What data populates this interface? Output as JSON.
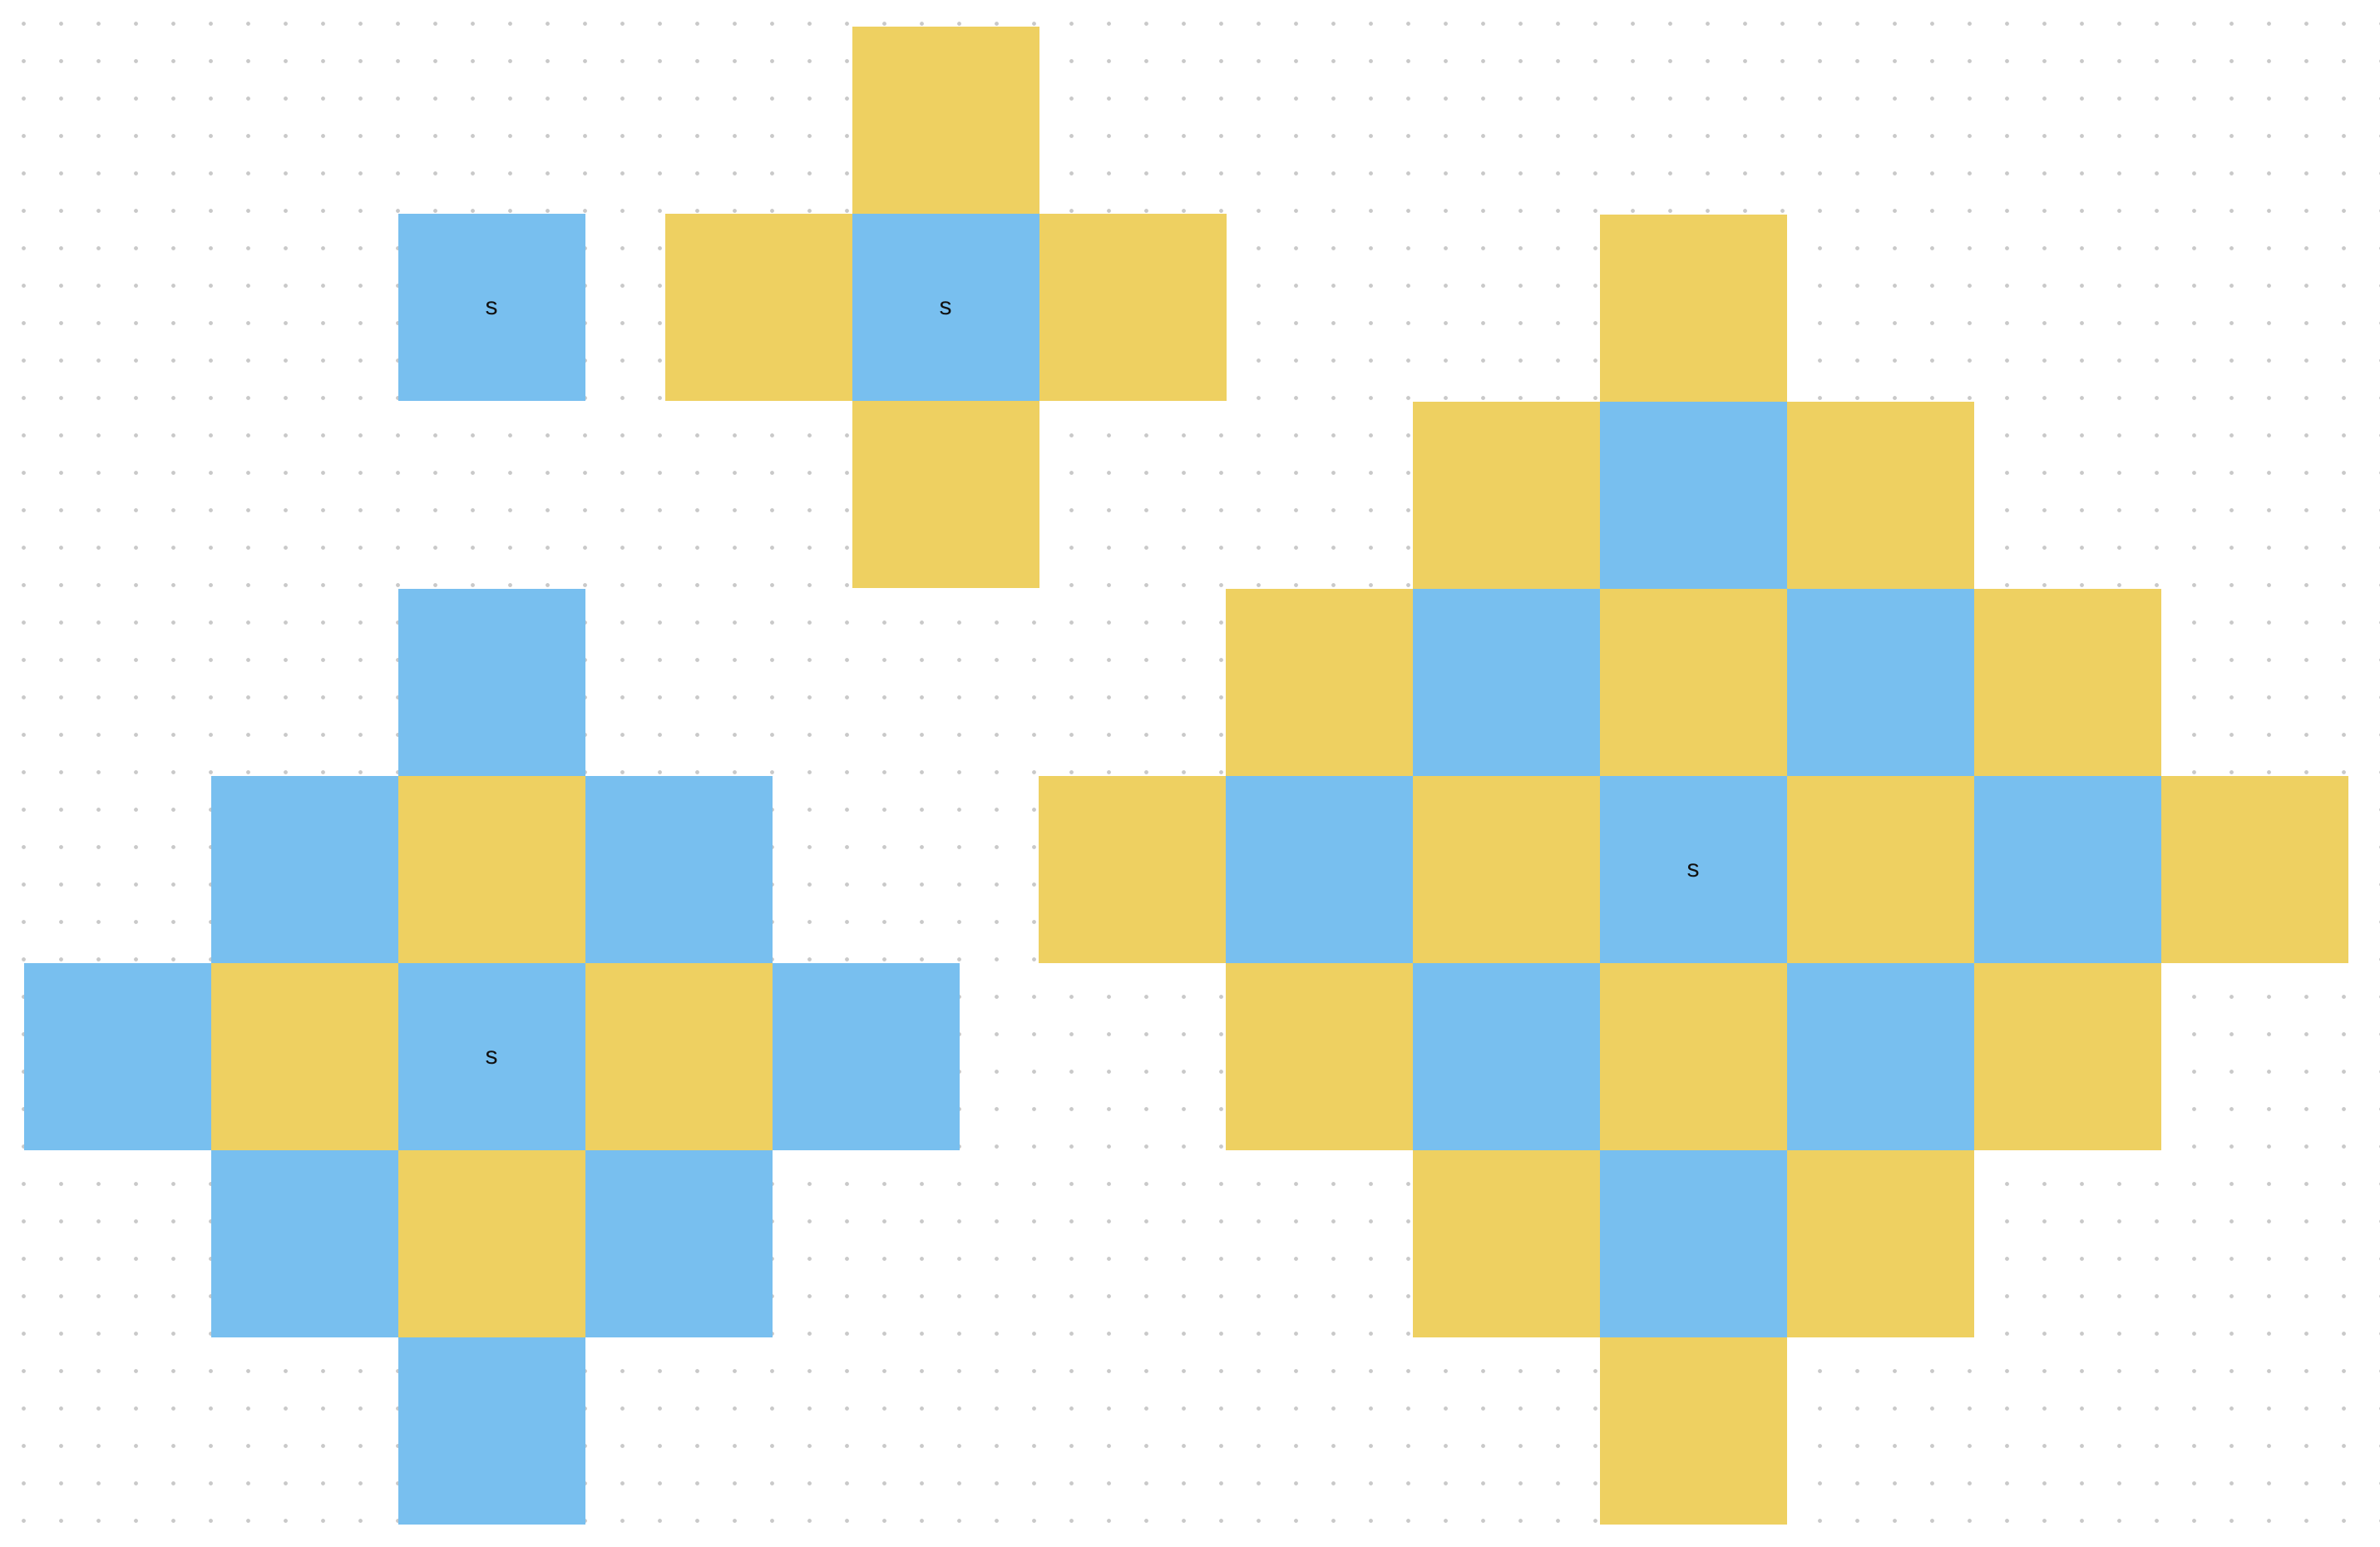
{
  "colors": {
    "blue": "#78bfef",
    "yellow": "#eed061",
    "background": "#ffffff",
    "grid_dot": "#c9c9c9"
  },
  "figures": [
    {
      "name": "figure-1",
      "source_label": "s",
      "cells": [
        {
          "col": 0,
          "row": 0,
          "color": "blue",
          "label": "s"
        }
      ]
    },
    {
      "name": "figure-2",
      "source_label": "s",
      "cells": [
        {
          "col": 0,
          "row": -1,
          "color": "yellow"
        },
        {
          "col": -1,
          "row": 0,
          "color": "yellow"
        },
        {
          "col": 0,
          "row": 0,
          "color": "blue",
          "label": "s"
        },
        {
          "col": 1,
          "row": 0,
          "color": "yellow"
        },
        {
          "col": 0,
          "row": 1,
          "color": "yellow"
        }
      ]
    },
    {
      "name": "figure-3",
      "source_label": "s",
      "cells": [
        {
          "col": 0,
          "row": -2,
          "color": "blue"
        },
        {
          "col": -1,
          "row": -1,
          "color": "blue"
        },
        {
          "col": 0,
          "row": -1,
          "color": "yellow"
        },
        {
          "col": 1,
          "row": -1,
          "color": "blue"
        },
        {
          "col": -2,
          "row": 0,
          "color": "blue"
        },
        {
          "col": -1,
          "row": 0,
          "color": "yellow"
        },
        {
          "col": 0,
          "row": 0,
          "color": "blue",
          "label": "s"
        },
        {
          "col": 1,
          "row": 0,
          "color": "yellow"
        },
        {
          "col": 2,
          "row": 0,
          "color": "blue"
        },
        {
          "col": -1,
          "row": 1,
          "color": "blue"
        },
        {
          "col": 0,
          "row": 1,
          "color": "yellow"
        },
        {
          "col": 1,
          "row": 1,
          "color": "blue"
        },
        {
          "col": 0,
          "row": 2,
          "color": "blue"
        }
      ]
    },
    {
      "name": "figure-4",
      "source_label": "s",
      "cells": [
        {
          "col": 0,
          "row": -3,
          "color": "yellow"
        },
        {
          "col": -1,
          "row": -2,
          "color": "yellow"
        },
        {
          "col": 0,
          "row": -2,
          "color": "blue"
        },
        {
          "col": 1,
          "row": -2,
          "color": "yellow"
        },
        {
          "col": -2,
          "row": -1,
          "color": "yellow"
        },
        {
          "col": -1,
          "row": -1,
          "color": "blue"
        },
        {
          "col": 0,
          "row": -1,
          "color": "yellow"
        },
        {
          "col": 1,
          "row": -1,
          "color": "blue"
        },
        {
          "col": 2,
          "row": -1,
          "color": "yellow"
        },
        {
          "col": -3,
          "row": 0,
          "color": "yellow"
        },
        {
          "col": -2,
          "row": 0,
          "color": "blue"
        },
        {
          "col": -1,
          "row": 0,
          "color": "yellow"
        },
        {
          "col": 0,
          "row": 0,
          "color": "blue",
          "label": "s"
        },
        {
          "col": 1,
          "row": 0,
          "color": "yellow"
        },
        {
          "col": 2,
          "row": 0,
          "color": "blue"
        },
        {
          "col": 3,
          "row": 0,
          "color": "yellow"
        },
        {
          "col": -2,
          "row": 1,
          "color": "yellow"
        },
        {
          "col": -1,
          "row": 1,
          "color": "blue"
        },
        {
          "col": 0,
          "row": 1,
          "color": "yellow"
        },
        {
          "col": 1,
          "row": 1,
          "color": "blue"
        },
        {
          "col": 2,
          "row": 1,
          "color": "yellow"
        },
        {
          "col": -1,
          "row": 2,
          "color": "yellow"
        },
        {
          "col": 0,
          "row": 2,
          "color": "blue"
        },
        {
          "col": 1,
          "row": 2,
          "color": "yellow"
        },
        {
          "col": 0,
          "row": 3,
          "color": "yellow"
        }
      ]
    }
  ]
}
